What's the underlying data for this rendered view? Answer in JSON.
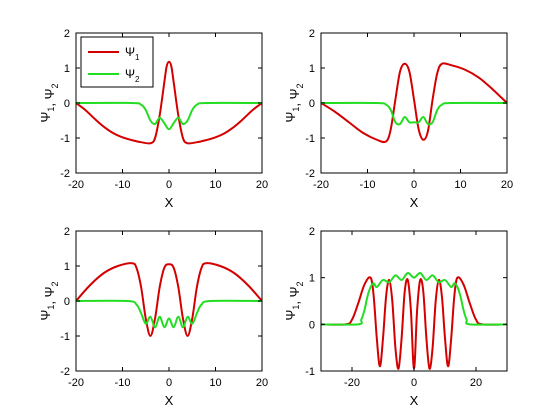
{
  "figure": {
    "background": "#ffffff",
    "series_colors": [
      "#d40000",
      "#22dd22"
    ]
  },
  "legend": {
    "entries": [
      "Ψ1",
      "Ψ2"
    ],
    "placement": "top-left",
    "panel": 0
  },
  "chart_data": [
    {
      "type": "line",
      "xlabel": "X",
      "ylabel": "Ψ1, Ψ2",
      "xlim": [
        -20,
        20
      ],
      "ylim": [
        -2,
        2
      ],
      "xticks": [
        -20,
        -10,
        0,
        10,
        20
      ],
      "yticks": [
        -2,
        -1,
        0,
        1,
        2
      ],
      "grid": false,
      "series": [
        {
          "name": "Ψ1",
          "x": [
            -20,
            -18,
            -16,
            -14,
            -12,
            -10,
            -8,
            -6,
            -4,
            -3,
            -2,
            -1,
            -0.5,
            0,
            0.5,
            1,
            2,
            3,
            4,
            6,
            8,
            10,
            12,
            14,
            16,
            18,
            20
          ],
          "values": [
            0,
            -0.2,
            -0.45,
            -0.68,
            -0.86,
            -0.98,
            -1.06,
            -1.12,
            -1.15,
            -1.0,
            -0.35,
            0.6,
            1.05,
            1.18,
            1.05,
            0.6,
            -0.35,
            -1.0,
            -1.15,
            -1.12,
            -1.06,
            -0.98,
            -0.86,
            -0.68,
            -0.45,
            -0.2,
            0
          ]
        },
        {
          "name": "Ψ2",
          "x": [
            -20,
            -8,
            -6,
            -5,
            -4,
            -3,
            -2,
            -1,
            0,
            1,
            2,
            3,
            4,
            5,
            6,
            8,
            20
          ],
          "values": [
            0,
            0,
            -0.05,
            -0.2,
            -0.5,
            -0.6,
            -0.42,
            -0.58,
            -0.75,
            -0.58,
            -0.42,
            -0.6,
            -0.5,
            -0.2,
            -0.05,
            0,
            0
          ]
        }
      ]
    },
    {
      "type": "line",
      "xlabel": "X",
      "ylabel": "Ψ1, Ψ2",
      "xlim": [
        -20,
        20
      ],
      "ylim": [
        -2,
        2
      ],
      "xticks": [
        -20,
        -10,
        0,
        10,
        20
      ],
      "yticks": [
        -2,
        -1,
        0,
        1,
        2
      ],
      "grid": false,
      "series": [
        {
          "name": "Ψ1",
          "x": [
            -20,
            -17,
            -14,
            -11,
            -8,
            -6,
            -5,
            -4,
            -3,
            -2,
            -1,
            0,
            1,
            2,
            3,
            4,
            5,
            6,
            8,
            11,
            14,
            17,
            20
          ],
          "values": [
            0,
            -0.25,
            -0.55,
            -0.85,
            -1.05,
            -1.1,
            -0.75,
            0.1,
            0.9,
            1.12,
            0.9,
            0.1,
            -0.75,
            -1.05,
            -0.8,
            0.1,
            0.85,
            1.12,
            1.08,
            0.95,
            0.72,
            0.38,
            0
          ]
        },
        {
          "name": "Ψ2",
          "x": [
            -20,
            -8,
            -6,
            -5,
            -4,
            -3,
            -2,
            -1,
            0,
            1,
            2,
            3,
            4,
            5,
            6,
            8,
            20
          ],
          "values": [
            0,
            0,
            -0.05,
            -0.2,
            -0.55,
            -0.6,
            -0.4,
            -0.55,
            -0.55,
            -0.55,
            -0.4,
            -0.6,
            -0.55,
            -0.2,
            -0.05,
            0,
            0
          ]
        }
      ]
    },
    {
      "type": "line",
      "xlabel": "X",
      "ylabel": "Ψ1, Ψ2",
      "xlim": [
        -20,
        20
      ],
      "ylim": [
        -2,
        2
      ],
      "xticks": [
        -20,
        -10,
        0,
        10,
        20
      ],
      "yticks": [
        -2,
        -1,
        0,
        1,
        2
      ],
      "grid": false,
      "series": [
        {
          "name": "Ψ1",
          "x": [
            -20,
            -17,
            -14,
            -11,
            -8,
            -7,
            -6,
            -5,
            -4,
            -3,
            -2,
            -1,
            0,
            1,
            2,
            3,
            4,
            5,
            6,
            7,
            8,
            11,
            14,
            17,
            20
          ],
          "values": [
            0,
            0.45,
            0.8,
            1.0,
            1.08,
            0.95,
            0.4,
            -0.5,
            -1.0,
            -0.5,
            0.4,
            0.95,
            1.05,
            0.95,
            0.4,
            -0.5,
            -1.0,
            -0.5,
            0.4,
            0.95,
            1.08,
            1.0,
            0.8,
            0.45,
            0
          ]
        },
        {
          "name": "Ψ2",
          "x": [
            -20,
            -9,
            -7,
            -6,
            -5,
            -4,
            -3,
            -2,
            -1,
            0,
            1,
            2,
            3,
            4,
            5,
            6,
            7,
            9,
            20
          ],
          "values": [
            0,
            0,
            -0.1,
            -0.35,
            -0.65,
            -0.45,
            -0.75,
            -0.45,
            -0.75,
            -0.5,
            -0.75,
            -0.45,
            -0.75,
            -0.45,
            -0.65,
            -0.35,
            -0.1,
            0,
            0
          ]
        }
      ]
    },
    {
      "type": "line",
      "xlabel": "X",
      "ylabel": "Ψ1, Ψ2",
      "xlim": [
        -30,
        30
      ],
      "ylim": [
        -1,
        2
      ],
      "xticks": [
        -20,
        0,
        20
      ],
      "yticks": [
        -1,
        0,
        1,
        2
      ],
      "grid": false,
      "series": [
        {
          "name": "Ψ1",
          "x": [
            -30,
            -22,
            -20,
            -18,
            -16,
            -14,
            -13,
            -12,
            -11,
            -10,
            -9,
            -8,
            -7,
            -6,
            -5,
            -4,
            -3,
            -2,
            -1,
            0,
            1,
            2,
            3,
            4,
            5,
            6,
            7,
            8,
            9,
            10,
            11,
            12,
            13,
            14,
            16,
            18,
            20,
            22,
            30
          ],
          "values": [
            0,
            0,
            0.1,
            0.45,
            0.85,
            1.0,
            0.6,
            -0.3,
            -0.9,
            -0.3,
            0.6,
            0.95,
            0.5,
            -0.5,
            -0.95,
            -0.3,
            0.7,
            0.95,
            0.3,
            -0.95,
            0.3,
            0.95,
            0.7,
            -0.3,
            -0.95,
            -0.5,
            0.5,
            0.95,
            0.6,
            -0.3,
            -0.9,
            -0.3,
            0.6,
            1.0,
            0.85,
            0.45,
            0.1,
            0,
            0
          ]
        },
        {
          "name": "Ψ2",
          "x": [
            -30,
            -18,
            -17,
            -16,
            -15,
            -14,
            -13,
            -12,
            -10,
            -8,
            -6,
            -4,
            -2,
            0,
            2,
            4,
            6,
            8,
            10,
            12,
            13,
            14,
            15,
            16,
            17,
            18,
            30
          ],
          "values": [
            0,
            0,
            0.1,
            0.3,
            0.6,
            0.8,
            0.88,
            0.8,
            0.95,
            0.9,
            1.05,
            0.95,
            1.1,
            1.0,
            1.1,
            0.95,
            1.05,
            0.9,
            0.95,
            0.8,
            0.88,
            0.8,
            0.6,
            0.3,
            0.1,
            0,
            0
          ]
        }
      ]
    }
  ]
}
